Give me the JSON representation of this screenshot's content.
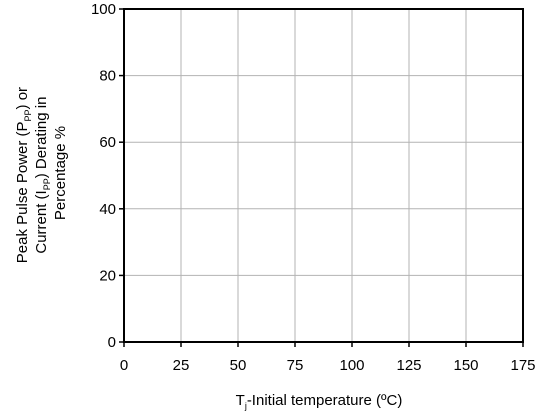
{
  "chart_data": {
    "type": "line",
    "title": "",
    "xlabel": {
      "prefix": "T",
      "sub": "j",
      "rest": "-Initial temperature (ºC)"
    },
    "ylabel": {
      "line1": {
        "a": "Peak Pulse Power (P",
        "sub": "PP",
        "b": ") or"
      },
      "line2": {
        "a": "Current (I",
        "sub": "PP",
        "b": ") Derating in"
      },
      "line3": "Percentage %"
    },
    "xlim": [
      0,
      175
    ],
    "ylim": [
      0,
      100
    ],
    "xticks": [
      "0",
      "25",
      "50",
      "75",
      "100",
      "125",
      "150",
      "175"
    ],
    "yticks": [
      "0",
      "20",
      "40",
      "60",
      "80",
      "100"
    ],
    "grid": true,
    "series": []
  }
}
